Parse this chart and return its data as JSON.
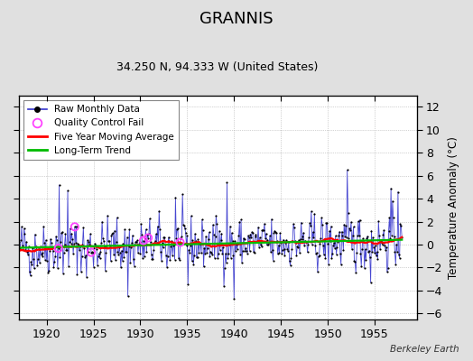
{
  "title": "GRANNIS",
  "subtitle": "34.250 N, 94.333 W (United States)",
  "ylabel": "Temperature Anomaly (°C)",
  "watermark": "Berkeley Earth",
  "xlim": [
    1917.0,
    1959.5
  ],
  "ylim": [
    -6.5,
    13.0
  ],
  "yticks": [
    -6,
    -4,
    -2,
    0,
    2,
    4,
    6,
    8,
    10,
    12
  ],
  "xticks": [
    1920,
    1925,
    1930,
    1935,
    1940,
    1945,
    1950,
    1955
  ],
  "bg_color": "#e0e0e0",
  "plot_bg_color": "#ffffff",
  "raw_line_color": "#3333cc",
  "raw_dot_color": "#000000",
  "moving_avg_color": "#ff0000",
  "trend_color": "#00bb00",
  "qc_fail_color": "#ff44ff",
  "seed": 42,
  "n_months": 492,
  "start_year": 1917.0
}
